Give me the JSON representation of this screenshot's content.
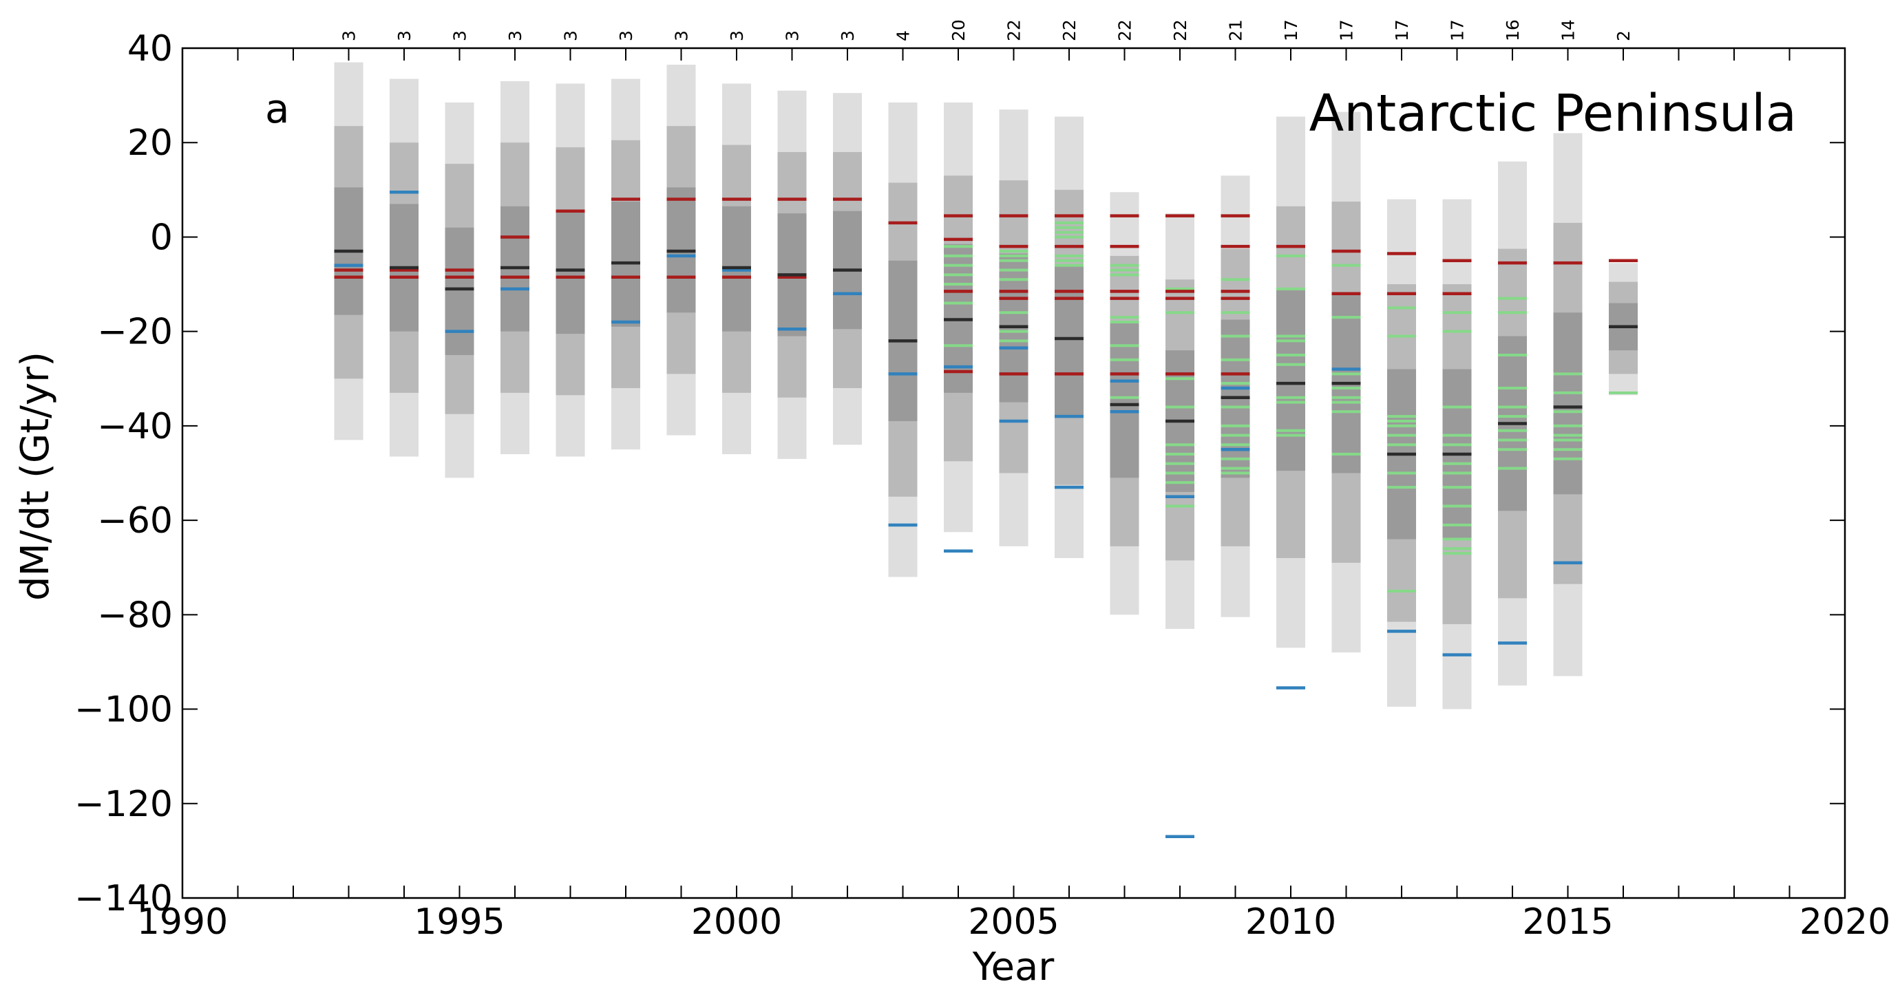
{
  "chart_data": {
    "type": "bar",
    "title": "Antarctic Peninsula",
    "panel_label": "a",
    "xlabel": "Year",
    "ylabel": "dM/dt (Gt/yr)",
    "xlim": [
      1990,
      2020
    ],
    "ylim": [
      -140,
      40
    ],
    "x_major_ticks": [
      1990,
      1995,
      2000,
      2005,
      2010,
      2015,
      2020
    ],
    "x_minor_ticks": [
      1991,
      1992,
      1993,
      1994,
      1996,
      1997,
      1998,
      1999,
      2001,
      2002,
      2003,
      2004,
      2006,
      2007,
      2008,
      2009,
      2011,
      2012,
      2013,
      2014,
      2016,
      2017,
      2018,
      2019
    ],
    "y_ticks": [
      40,
      20,
      0,
      -20,
      -40,
      -60,
      -80,
      -100,
      -120,
      -140
    ],
    "grid": false,
    "colors": {
      "band_outer": "#dedede",
      "band_middle": "#b9b9b9",
      "band_inner": "#9a9a9a",
      "mean": "#2b2b2b",
      "red": "#a81c1c",
      "blue": "#3182bd",
      "green": "#86d989"
    },
    "years": [
      {
        "year": 1993,
        "n": "3",
        "bands": [
          [
            -43,
            37
          ],
          [
            -30,
            23.5
          ],
          [
            -16.5,
            10.5
          ]
        ],
        "black": [
          -3
        ],
        "red": [
          -7,
          -8.5
        ],
        "blue": [
          -6
        ],
        "green": []
      },
      {
        "year": 1994,
        "n": "3",
        "bands": [
          [
            -46.5,
            33.5
          ],
          [
            -33,
            20
          ],
          [
            -20,
            7
          ]
        ],
        "black": [
          -6.5
        ],
        "red": [
          -7,
          -8.5
        ],
        "blue": [
          9.5
        ],
        "green": []
      },
      {
        "year": 1995,
        "n": "3",
        "bands": [
          [
            -51,
            28.5
          ],
          [
            -37.5,
            15.5
          ],
          [
            -25,
            2
          ]
        ],
        "black": [
          -11
        ],
        "red": [
          -7,
          -8.5
        ],
        "blue": [
          -20
        ],
        "green": []
      },
      {
        "year": 1996,
        "n": "3",
        "bands": [
          [
            -46,
            33
          ],
          [
            -33,
            20
          ],
          [
            -20,
            6.5
          ]
        ],
        "black": [
          -6.5
        ],
        "red": [
          0,
          -8.5
        ],
        "blue": [
          -11
        ],
        "green": []
      },
      {
        "year": 1997,
        "n": "3",
        "bands": [
          [
            -46.5,
            32.5
          ],
          [
            -33.5,
            19
          ],
          [
            -20.5,
            5.5
          ]
        ],
        "black": [
          -7
        ],
        "red": [
          5.5,
          -8.5
        ],
        "blue": [],
        "green": []
      },
      {
        "year": 1998,
        "n": "3",
        "bands": [
          [
            -45,
            33.5
          ],
          [
            -32,
            20.5
          ],
          [
            -19,
            7.5
          ]
        ],
        "black": [
          -5.5
        ],
        "red": [
          8,
          -8.5
        ],
        "blue": [
          -18
        ],
        "green": []
      },
      {
        "year": 1999,
        "n": "3",
        "bands": [
          [
            -42,
            36.5
          ],
          [
            -29,
            23.5
          ],
          [
            -16,
            10.5
          ]
        ],
        "black": [
          -3
        ],
        "red": [
          8,
          -8.5
        ],
        "blue": [
          -4
        ],
        "green": []
      },
      {
        "year": 2000,
        "n": "3",
        "bands": [
          [
            -46,
            32.5
          ],
          [
            -33,
            19.5
          ],
          [
            -20,
            6.5
          ]
        ],
        "black": [
          -6.5
        ],
        "red": [
          8,
          -8.5
        ],
        "blue": [
          -7
        ],
        "green": []
      },
      {
        "year": 2001,
        "n": "3",
        "bands": [
          [
            -47,
            31
          ],
          [
            -34,
            18
          ],
          [
            -21,
            5
          ]
        ],
        "black": [
          -8
        ],
        "red": [
          8,
          -8.5
        ],
        "blue": [
          -19.5
        ],
        "green": []
      },
      {
        "year": 2002,
        "n": "3",
        "bands": [
          [
            -44,
            30.5
          ],
          [
            -32,
            18
          ],
          [
            -19.5,
            5.5
          ]
        ],
        "black": [
          -7
        ],
        "red": [
          8
        ],
        "blue": [
          -12
        ],
        "green": []
      },
      {
        "year": 2003,
        "n": "4",
        "bands": [
          [
            -72,
            28.5
          ],
          [
            -55,
            11.5
          ],
          [
            -39,
            -5
          ]
        ],
        "black": [
          -22
        ],
        "red": [
          3
        ],
        "blue": [
          -29,
          -61
        ],
        "green": []
      },
      {
        "year": 2004,
        "n": "20",
        "bands": [
          [
            -62.5,
            28.5
          ],
          [
            -47.5,
            13
          ],
          [
            -33,
            -1.5
          ]
        ],
        "black": [
          -17.5
        ],
        "red": [
          4.5,
          -0.5,
          -11.5,
          -28.5
        ],
        "blue": [
          -27.5,
          -66.5
        ],
        "green": [
          -2,
          -4,
          -6,
          -8,
          -10,
          -14,
          -23
        ]
      },
      {
        "year": 2005,
        "n": "22",
        "bands": [
          [
            -65.5,
            27
          ],
          [
            -50,
            12
          ],
          [
            -35,
            -3.5
          ]
        ],
        "black": [
          -19
        ],
        "red": [
          4.5,
          -2,
          -11.5,
          -13,
          -29
        ],
        "blue": [
          -23.5,
          -39
        ],
        "green": [
          -3,
          -4,
          -5,
          -7,
          -9,
          -16,
          -20,
          -22
        ]
      },
      {
        "year": 2006,
        "n": "22",
        "bands": [
          [
            -68,
            25.5
          ],
          [
            -52.5,
            10
          ],
          [
            -38,
            -6
          ]
        ],
        "black": [
          -21.5
        ],
        "red": [
          4.5,
          -2,
          -11.5,
          -13,
          -29
        ],
        "blue": [
          -38,
          -53
        ],
        "green": [
          0,
          1,
          2,
          3,
          -4,
          -5,
          -6
        ]
      },
      {
        "year": 2007,
        "n": "22",
        "bands": [
          [
            -80,
            9.5
          ],
          [
            -65.5,
            -4
          ],
          [
            -51,
            -18
          ]
        ],
        "black": [
          -35.5
        ],
        "red": [
          4.5,
          -2,
          -11.5,
          -13,
          -29
        ],
        "blue": [
          -30.5,
          -37
        ],
        "green": [
          -6,
          -7,
          -8,
          -17,
          -18,
          -23,
          -26,
          -34
        ]
      },
      {
        "year": 2008,
        "n": "22",
        "bands": [
          [
            -83,
            5
          ],
          [
            -68.5,
            -9
          ],
          [
            -54,
            -24
          ]
        ],
        "black": [
          -39
        ],
        "red": [
          4.5,
          -11.5,
          -13,
          -29
        ],
        "blue": [
          -55,
          -127
        ],
        "green": [
          -11,
          -16,
          -30,
          -36,
          -44,
          -46,
          -48,
          -50,
          -52,
          -57
        ]
      },
      {
        "year": 2009,
        "n": "21",
        "bands": [
          [
            -80.5,
            13
          ],
          [
            -65.5,
            -2.5
          ],
          [
            -51,
            -17.5
          ]
        ],
        "black": [
          -34
        ],
        "red": [
          4.5,
          -2,
          -11.5,
          -13,
          -29
        ],
        "blue": [
          -32,
          -45
        ],
        "green": [
          -9,
          -16,
          -21,
          -26,
          -31,
          -36,
          -40,
          -42,
          -44,
          -47,
          -49,
          -50
        ]
      },
      {
        "year": 2010,
        "n": "17",
        "bands": [
          [
            -87,
            25.5
          ],
          [
            -68,
            6.5
          ],
          [
            -49.5,
            -11
          ]
        ],
        "black": [
          -31
        ],
        "red": [
          -2
        ],
        "blue": [
          -95.5
        ],
        "green": [
          -4,
          -11,
          -21,
          -22,
          -25,
          -27,
          -34,
          -35,
          -41,
          -42
        ]
      },
      {
        "year": 2011,
        "n": "17",
        "bands": [
          [
            -88,
            26.5
          ],
          [
            -69,
            7.5
          ],
          [
            -50,
            -12
          ]
        ],
        "black": [
          -31
        ],
        "red": [
          -3,
          -12
        ],
        "blue": [
          -28
        ],
        "green": [
          -6,
          -17,
          -29,
          -32,
          -34,
          -35,
          -37,
          -46
        ]
      },
      {
        "year": 2012,
        "n": "17",
        "bands": [
          [
            -99.5,
            8
          ],
          [
            -81.5,
            -10
          ],
          [
            -64,
            -28
          ]
        ],
        "black": [
          -46
        ],
        "red": [
          -3.5,
          -12
        ],
        "blue": [
          -83.5
        ],
        "green": [
          -12,
          -15,
          -21,
          -38,
          -39,
          -40,
          -42,
          -44,
          -50,
          -53,
          -75
        ]
      },
      {
        "year": 2013,
        "n": "17",
        "bands": [
          [
            -100,
            8
          ],
          [
            -82,
            -10
          ],
          [
            -64,
            -28
          ]
        ],
        "black": [
          -46
        ],
        "red": [
          -5,
          -12
        ],
        "blue": [
          -88.5
        ],
        "green": [
          -16,
          -20,
          -36,
          -42,
          -44,
          -48,
          -50,
          -53,
          -57,
          -61,
          -64,
          -66,
          -67
        ]
      },
      {
        "year": 2014,
        "n": "16",
        "bands": [
          [
            -95,
            16
          ],
          [
            -76.5,
            -2.5
          ],
          [
            -58,
            -21
          ]
        ],
        "black": [
          -39.5
        ],
        "red": [
          -5.5
        ],
        "blue": [
          -86
        ],
        "green": [
          -13,
          -16,
          -25,
          -32,
          -36,
          -38,
          -41,
          -43,
          -45,
          -49
        ]
      },
      {
        "year": 2015,
        "n": "14",
        "bands": [
          [
            -93,
            22
          ],
          [
            -73.5,
            3
          ],
          [
            -54.5,
            -16
          ]
        ],
        "black": [
          -36
        ],
        "red": [
          -5.5
        ],
        "blue": [
          -69
        ],
        "green": [
          -5.5,
          -29,
          -33,
          -37,
          -40,
          -42,
          -43,
          -45,
          -47
        ]
      },
      {
        "year": 2016,
        "n": "2",
        "bands": [
          [
            -33.5,
            -5.5
          ],
          [
            -29,
            -9.5
          ],
          [
            -24,
            -14
          ]
        ],
        "black": [
          -19
        ],
        "red": [
          -5
        ],
        "blue": [],
        "green": [
          -33
        ]
      }
    ]
  }
}
